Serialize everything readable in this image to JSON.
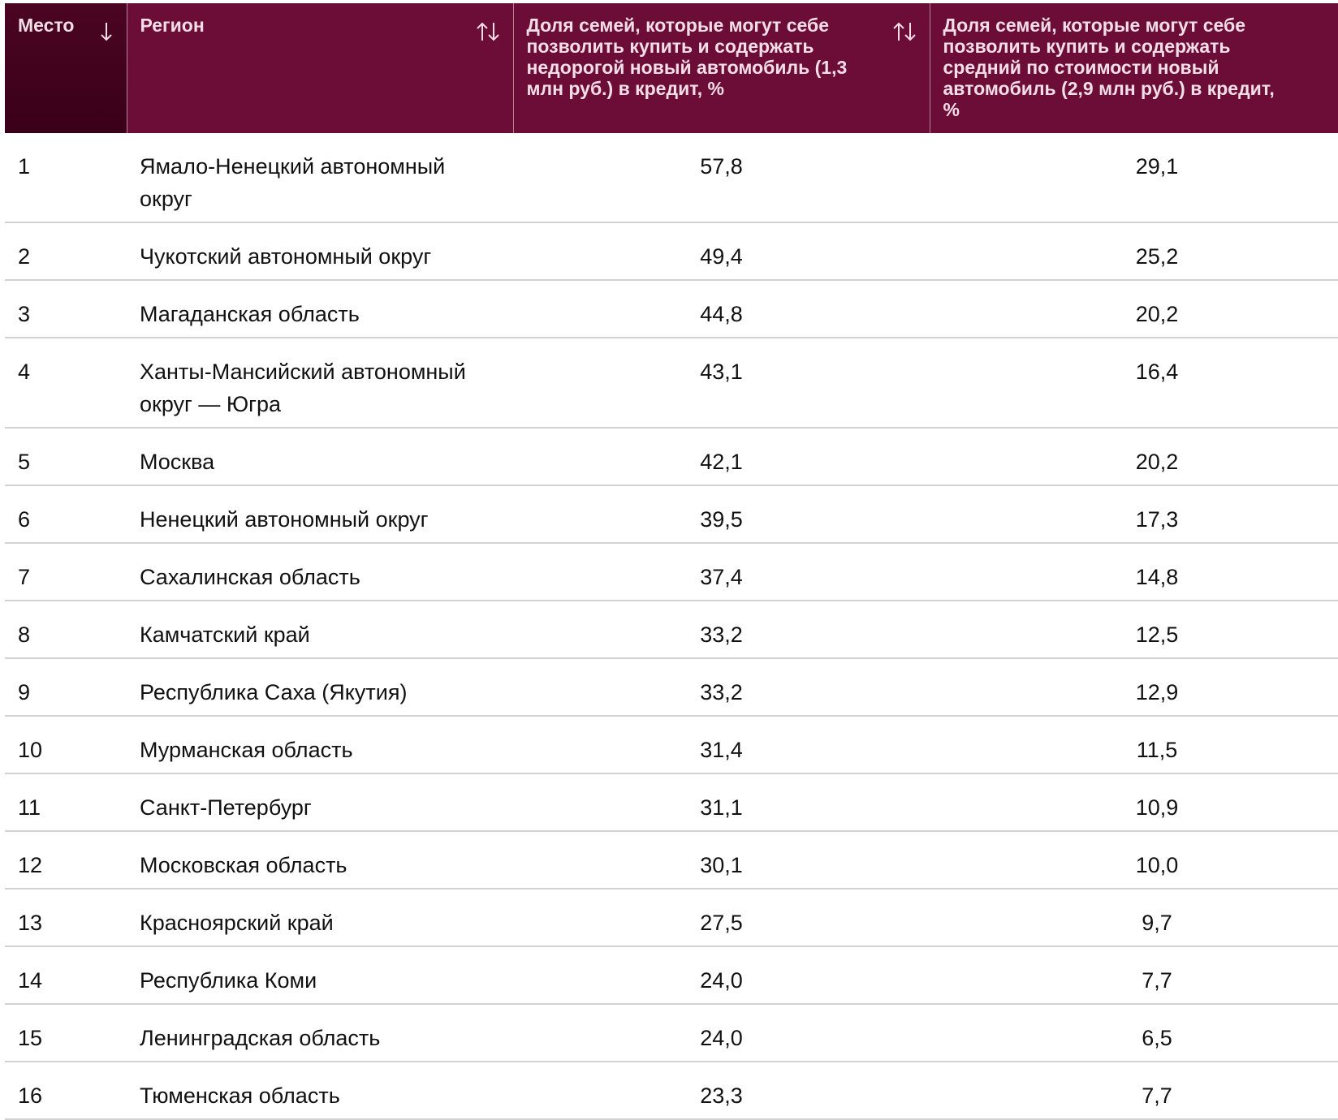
{
  "table": {
    "header": [
      "Место",
      "Регион",
      "Доля семей, которые могут себе позволить купить и содержать недорогой новый автомобиль (1,3 млн руб.) в кредит, %",
      "Доля семей, которые могут себе позволить купить и содержать средний по стоимости новый автомобиль (2,9 млн руб.) в кредит, %"
    ],
    "rows": [
      [
        "1",
        "Ямало-Ненецкий автономный округ",
        "57,8",
        "29,1"
      ],
      [
        "2",
        "Чукотский автономный округ",
        "49,4",
        "25,2"
      ],
      [
        "3",
        "Магаданская область",
        "44,8",
        "20,2"
      ],
      [
        "4",
        "Ханты-Мансийский автономный округ — Югра",
        "43,1",
        "16,4"
      ],
      [
        "5",
        "Москва",
        "42,1",
        "20,2"
      ],
      [
        "6",
        "Ненецкий автономный округ",
        "39,5",
        "17,3"
      ],
      [
        "7",
        "Сахалинская область",
        "37,4",
        "14,8"
      ],
      [
        "8",
        "Камчатский край",
        "33,2",
        "12,5"
      ],
      [
        "9",
        "Республика Саха (Якутия)",
        "33,2",
        "12,9"
      ],
      [
        "10",
        "Мурманская область",
        "31,4",
        "11,5"
      ],
      [
        "11",
        "Санкт-Петербург",
        "31,1",
        "10,9"
      ],
      [
        "12",
        "Московская область",
        "30,1",
        "10,0"
      ],
      [
        "13",
        "Красноярский край",
        "27,5",
        "9,7"
      ],
      [
        "14",
        "Республика Коми",
        "24,0",
        "7,7"
      ],
      [
        "15",
        "Ленинградская область",
        "24,0",
        "6,5"
      ],
      [
        "16",
        "Тюменская область",
        "23,3",
        "7,7"
      ]
    ]
  }
}
